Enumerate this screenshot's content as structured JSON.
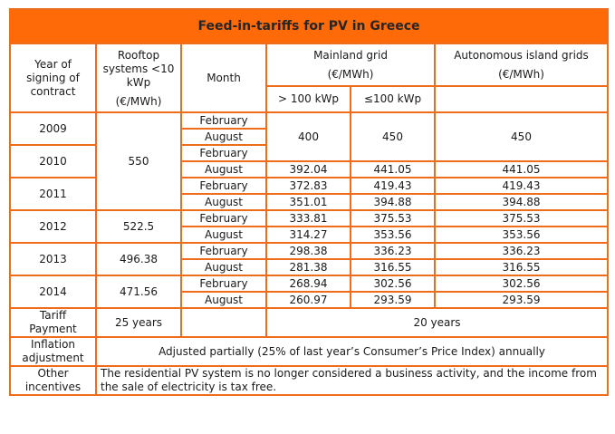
{
  "title": "Feed-in-tariffs for PV in Greece",
  "headers": {
    "year": [
      "Year of",
      "signing of",
      "contract"
    ],
    "rooftop": [
      "Rooftop",
      "systems <10",
      "kWp"
    ],
    "rooftop_unit": "(€/MWh)",
    "month": "Month",
    "mainland": "Mainland grid",
    "mainland_unit": "(€/MWh)",
    "mainland_gt100": "> 100 kWp",
    "mainland_le100": "≤100 kWp",
    "island": "Autonomous island grids",
    "island_unit": "(€/MWh)"
  },
  "rows": [
    {
      "year": "2009",
      "month": "February"
    },
    {
      "month": "August"
    },
    {
      "year": "2010",
      "month": "February"
    },
    {
      "month": "August",
      "gt100": "392.04",
      "le100": "441.05",
      "island": "441.05"
    },
    {
      "year": "2011",
      "month": "February",
      "gt100": "372.83",
      "le100": "419.43",
      "island": "419.43"
    },
    {
      "month": "August",
      "gt100": "351.01",
      "le100": "394.88",
      "island": "394.88"
    },
    {
      "year": "2012",
      "month": "February",
      "gt100": "333.81",
      "le100": "375.53",
      "island": "375.53"
    },
    {
      "month": "August",
      "gt100": "314.27",
      "le100": "353.56",
      "island": "353.56"
    },
    {
      "year": "2013",
      "month": "February",
      "gt100": "298.38",
      "le100": "336.23",
      "island": "336.23"
    },
    {
      "month": "August",
      "gt100": "281.38",
      "le100": "316.55",
      "island": "316.55"
    },
    {
      "year": "2014",
      "month": "February",
      "gt100": "268.94",
      "le100": "302.56",
      "island": "302.56"
    },
    {
      "month": "August",
      "gt100": "260.97",
      "le100": "293.59",
      "island": "293.59"
    }
  ],
  "merged": {
    "rooftop_2009_2011": "550",
    "rooftop_2012": "522.5",
    "rooftop_2013": "496.38",
    "rooftop_2014": "471.56",
    "gt100_2009_2010": "400",
    "le100_2009_2010": "450",
    "island_2009_2010": "450"
  },
  "footer": {
    "tariff_label": [
      "Tariff",
      "Payment"
    ],
    "tariff_rooftop": "25 years",
    "tariff_other": "20 years",
    "inflation_label": [
      "Inflation",
      "adjustment"
    ],
    "inflation_text": "Adjusted partially (25% of last year’s Consumer’s Price Index) annually",
    "other_label": [
      "Other",
      "incentives"
    ],
    "other_text": [
      "The residential PV system is no longer considered a business activity, and the income from",
      "the sale of electricity is tax free."
    ]
  },
  "colors": {
    "accent": "#ff6a08",
    "border": "#ef6c1a"
  }
}
